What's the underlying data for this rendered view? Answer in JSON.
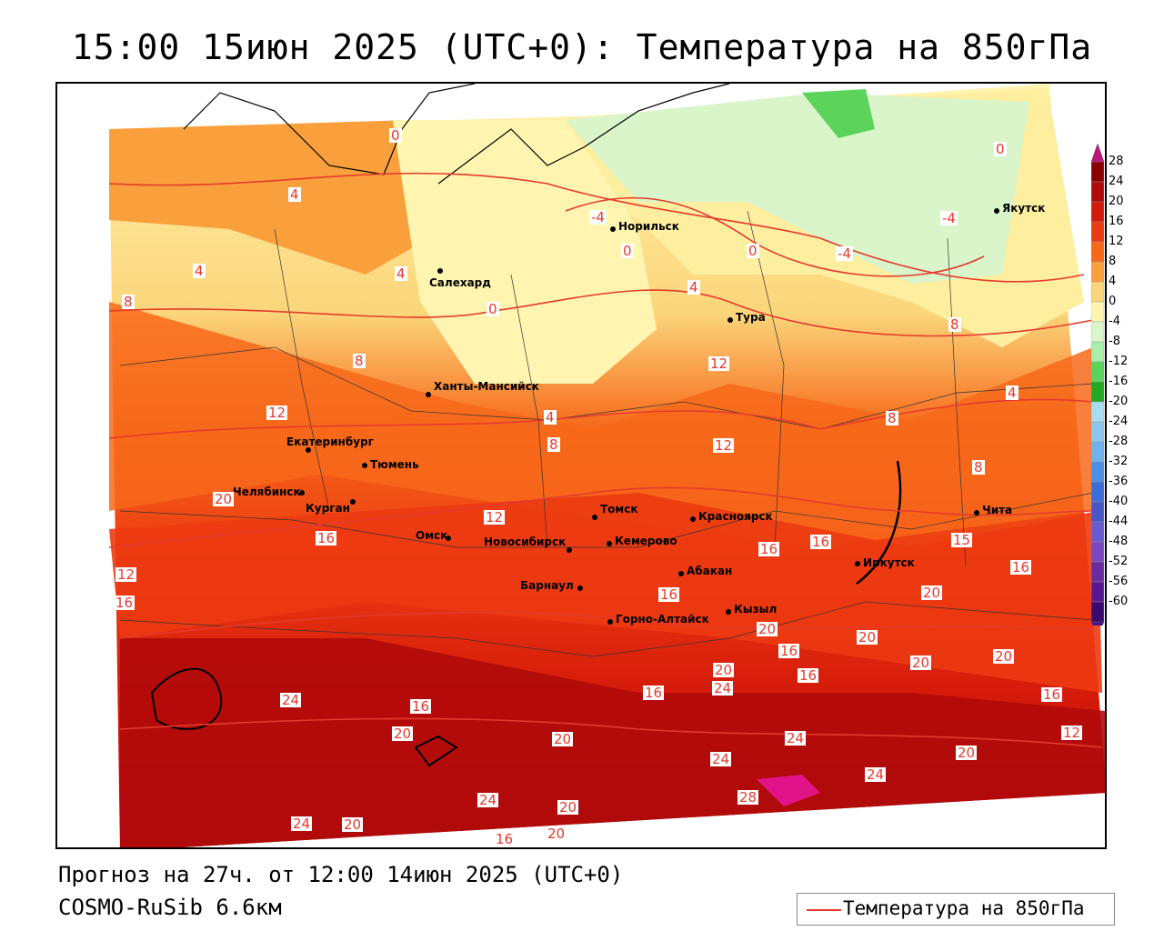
{
  "title": "15:00 15июн 2025 (UTC+0): Температура на 850гПа",
  "footer": {
    "forecast": "Прогноз на 27ч. от 12:00 14июн 2025 (UTC+0)",
    "model": "COSMO-RuSib 6.6км"
  },
  "legend": {
    "label": "Температура на 850гПа",
    "color": "#e53a2e"
  },
  "colorbar": {
    "labels": [
      "28",
      "24",
      "20",
      "16",
      "12",
      "8",
      "4",
      "0",
      "-4",
      "-8",
      "-12",
      "-16",
      "-20",
      "-24",
      "-28",
      "-32",
      "-36",
      "-40",
      "-44",
      "-48",
      "-52",
      "-56",
      "-60"
    ],
    "colors": [
      "#8b0000",
      "#b00a0a",
      "#d41a0a",
      "#ec3a12",
      "#f7681a",
      "#f9a03c",
      "#fbd57a",
      "#fff4b0",
      "#d9f5c9",
      "#a6eeaa",
      "#5cd45c",
      "#22a822",
      "#a6ddf0",
      "#8cc8ee",
      "#6fb2ec",
      "#4a8fe6",
      "#3a6fd8",
      "#4a55c8",
      "#6a5ad0",
      "#7a48c0",
      "#6a2aa0",
      "#5a1890",
      "#3a0a70"
    ]
  },
  "cities": [
    {
      "name": "Норильск"
    },
    {
      "name": "Якутск"
    },
    {
      "name": "Салехард"
    },
    {
      "name": "Тура"
    },
    {
      "name": "Ханты-Мансийск"
    },
    {
      "name": "Екатеринбург"
    },
    {
      "name": "Тюмень"
    },
    {
      "name": "Челябинск"
    },
    {
      "name": "Курган"
    },
    {
      "name": "Омск"
    },
    {
      "name": "Томск"
    },
    {
      "name": "Красноярск"
    },
    {
      "name": "Новосибирск"
    },
    {
      "name": "Кемерово"
    },
    {
      "name": "Абакан"
    },
    {
      "name": "Иркутск"
    },
    {
      "name": "Чита"
    },
    {
      "name": "Барнаул"
    },
    {
      "name": "Горно-Алтайск"
    },
    {
      "name": "Кызыл"
    }
  ],
  "isolines": [
    "0",
    "4",
    "-4",
    "0",
    "0",
    "-4",
    "4",
    "-4",
    "4",
    "0",
    "0",
    "8",
    "4",
    "8",
    "12",
    "8",
    "4",
    "4",
    "8",
    "8",
    "12",
    "8",
    "12",
    "20",
    "16",
    "12",
    "16",
    "16",
    "16",
    "15",
    "12",
    "16",
    "16",
    "20",
    "16",
    "20",
    "20",
    "16",
    "24",
    "16",
    "20",
    "20",
    "24",
    "16",
    "20",
    "24",
    "20",
    "20",
    "24",
    "24",
    "20",
    "24",
    "20",
    "16",
    "28",
    "20",
    "24",
    "20",
    "16",
    "12"
  ]
}
